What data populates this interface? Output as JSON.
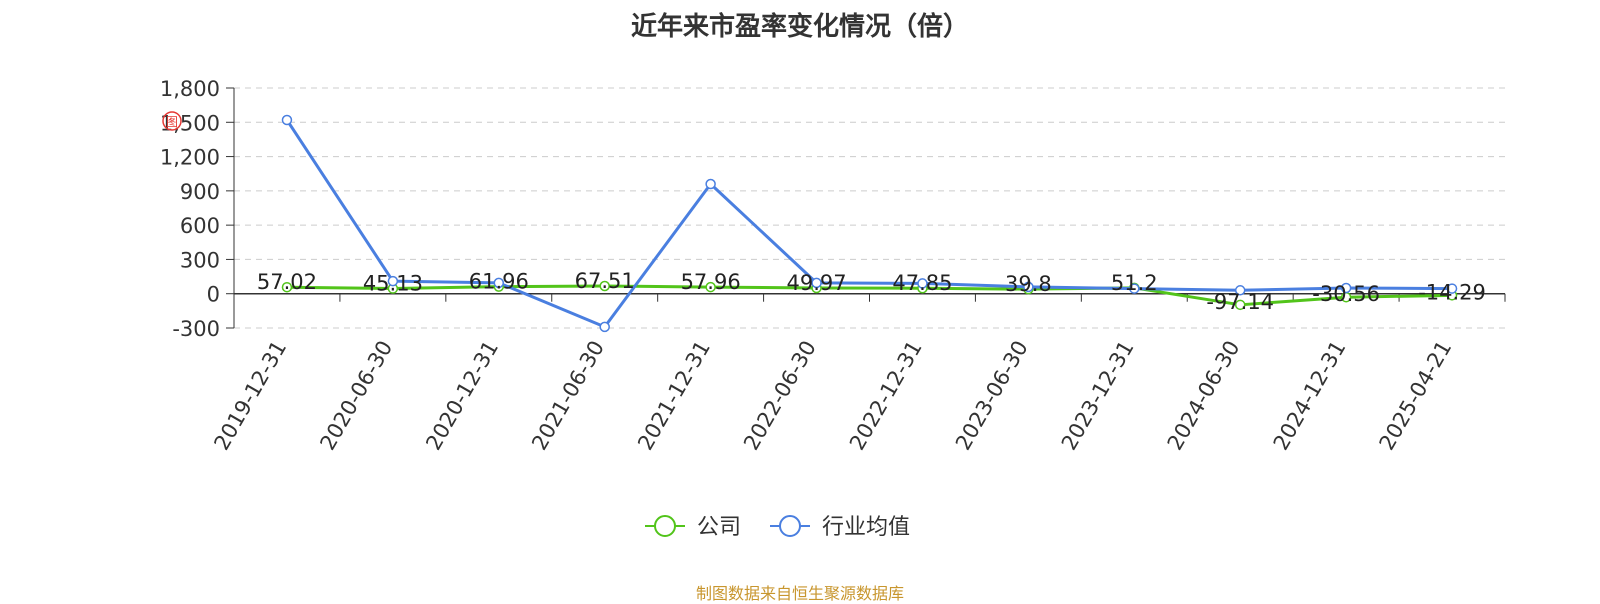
{
  "chart_data": {
    "type": "line",
    "title": "近年来市盈率变化情况（倍）",
    "categories": [
      "2019-12-31",
      "2020-06-30",
      "2020-12-31",
      "2021-06-30",
      "2021-12-31",
      "2022-06-30",
      "2022-12-31",
      "2023-06-30",
      "2023-12-31",
      "2024-06-30",
      "2024-12-31",
      "2025-04-21"
    ],
    "series": [
      {
        "name": "公司",
        "color": "#52c41a",
        "values": [
          57.02,
          45.13,
          61.96,
          67.51,
          57.96,
          49.97,
          47.85,
          39.8,
          51.2,
          -97.14,
          -30.56,
          -14.29
        ],
        "labels": [
          "57.02",
          "45.13",
          "61.96",
          "67.51",
          "57.96",
          "49.97",
          "47.85",
          "39.8",
          "51.2",
          "-97.14",
          "-30.56",
          "-14.29"
        ]
      },
      {
        "name": "行业均值",
        "color": "#4a7fe0",
        "values": [
          1520,
          110,
          95,
          -290,
          960,
          95,
          90,
          60,
          45,
          30,
          50,
          45
        ]
      }
    ],
    "ylim": [
      -300,
      1800
    ],
    "yticks": [
      "-300",
      "0",
      "300",
      "600",
      "900",
      "1,200",
      "1,500",
      "1,800"
    ],
    "ytick_values": [
      -300,
      0,
      300,
      600,
      900,
      1200,
      1500,
      1800
    ],
    "grid": true,
    "legend_position": "bottom-center"
  },
  "source": "制图数据来自恒生聚源数据库",
  "watermark": "图"
}
